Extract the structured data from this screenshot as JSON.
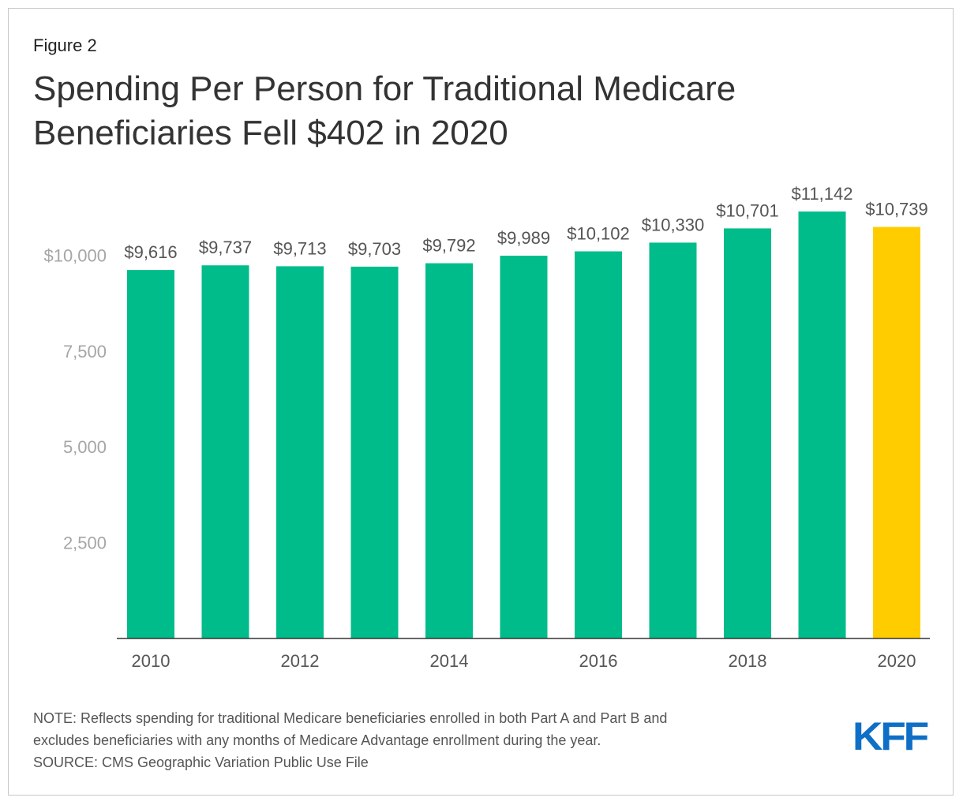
{
  "figure_label": "Figure 2",
  "title_lines": [
    "Spending Per Person for Traditional Medicare",
    "Beneficiaries Fell $402 in 2020"
  ],
  "note_line1": "NOTE: Reflects spending for traditional Medicare beneficiaries enrolled in both Part A and Part B and",
  "note_line2": "excludes beneficiaries with any months of Medicare Advantage enrollment during the year.",
  "source": "SOURCE: CMS Geographic Variation Public Use File",
  "logo_text": "KFF",
  "colors": {
    "bar": "#00bc8a",
    "highlight": "#ffcc00",
    "logo": "#0f6fc6"
  },
  "chart_data": {
    "type": "bar",
    "categories": [
      "2010",
      "2011",
      "2012",
      "2013",
      "2014",
      "2015",
      "2016",
      "2017",
      "2018",
      "2019",
      "2020"
    ],
    "values": [
      9616,
      9737,
      9713,
      9703,
      9792,
      9989,
      10102,
      10330,
      10701,
      11142,
      10739
    ],
    "data_labels": [
      "$9,616",
      "$9,737",
      "$9,713",
      "$9,703",
      "$9,792",
      "$9,989",
      "$10,102",
      "$10,330",
      "$10,701",
      "$11,142",
      "$10,739"
    ],
    "x_tick_labels": [
      "2010",
      "",
      "2012",
      "",
      "2014",
      "",
      "2016",
      "",
      "2018",
      "",
      "2020"
    ],
    "y_ticks": [
      2500,
      5000,
      7500,
      10000
    ],
    "y_tick_labels": [
      "2,500",
      "5,000",
      "7,500",
      "$10,000"
    ],
    "ylim": [
      0,
      11142
    ],
    "highlight_category": "2020",
    "xlabel": "",
    "ylabel": "",
    "grid": false,
    "legend": "none"
  }
}
